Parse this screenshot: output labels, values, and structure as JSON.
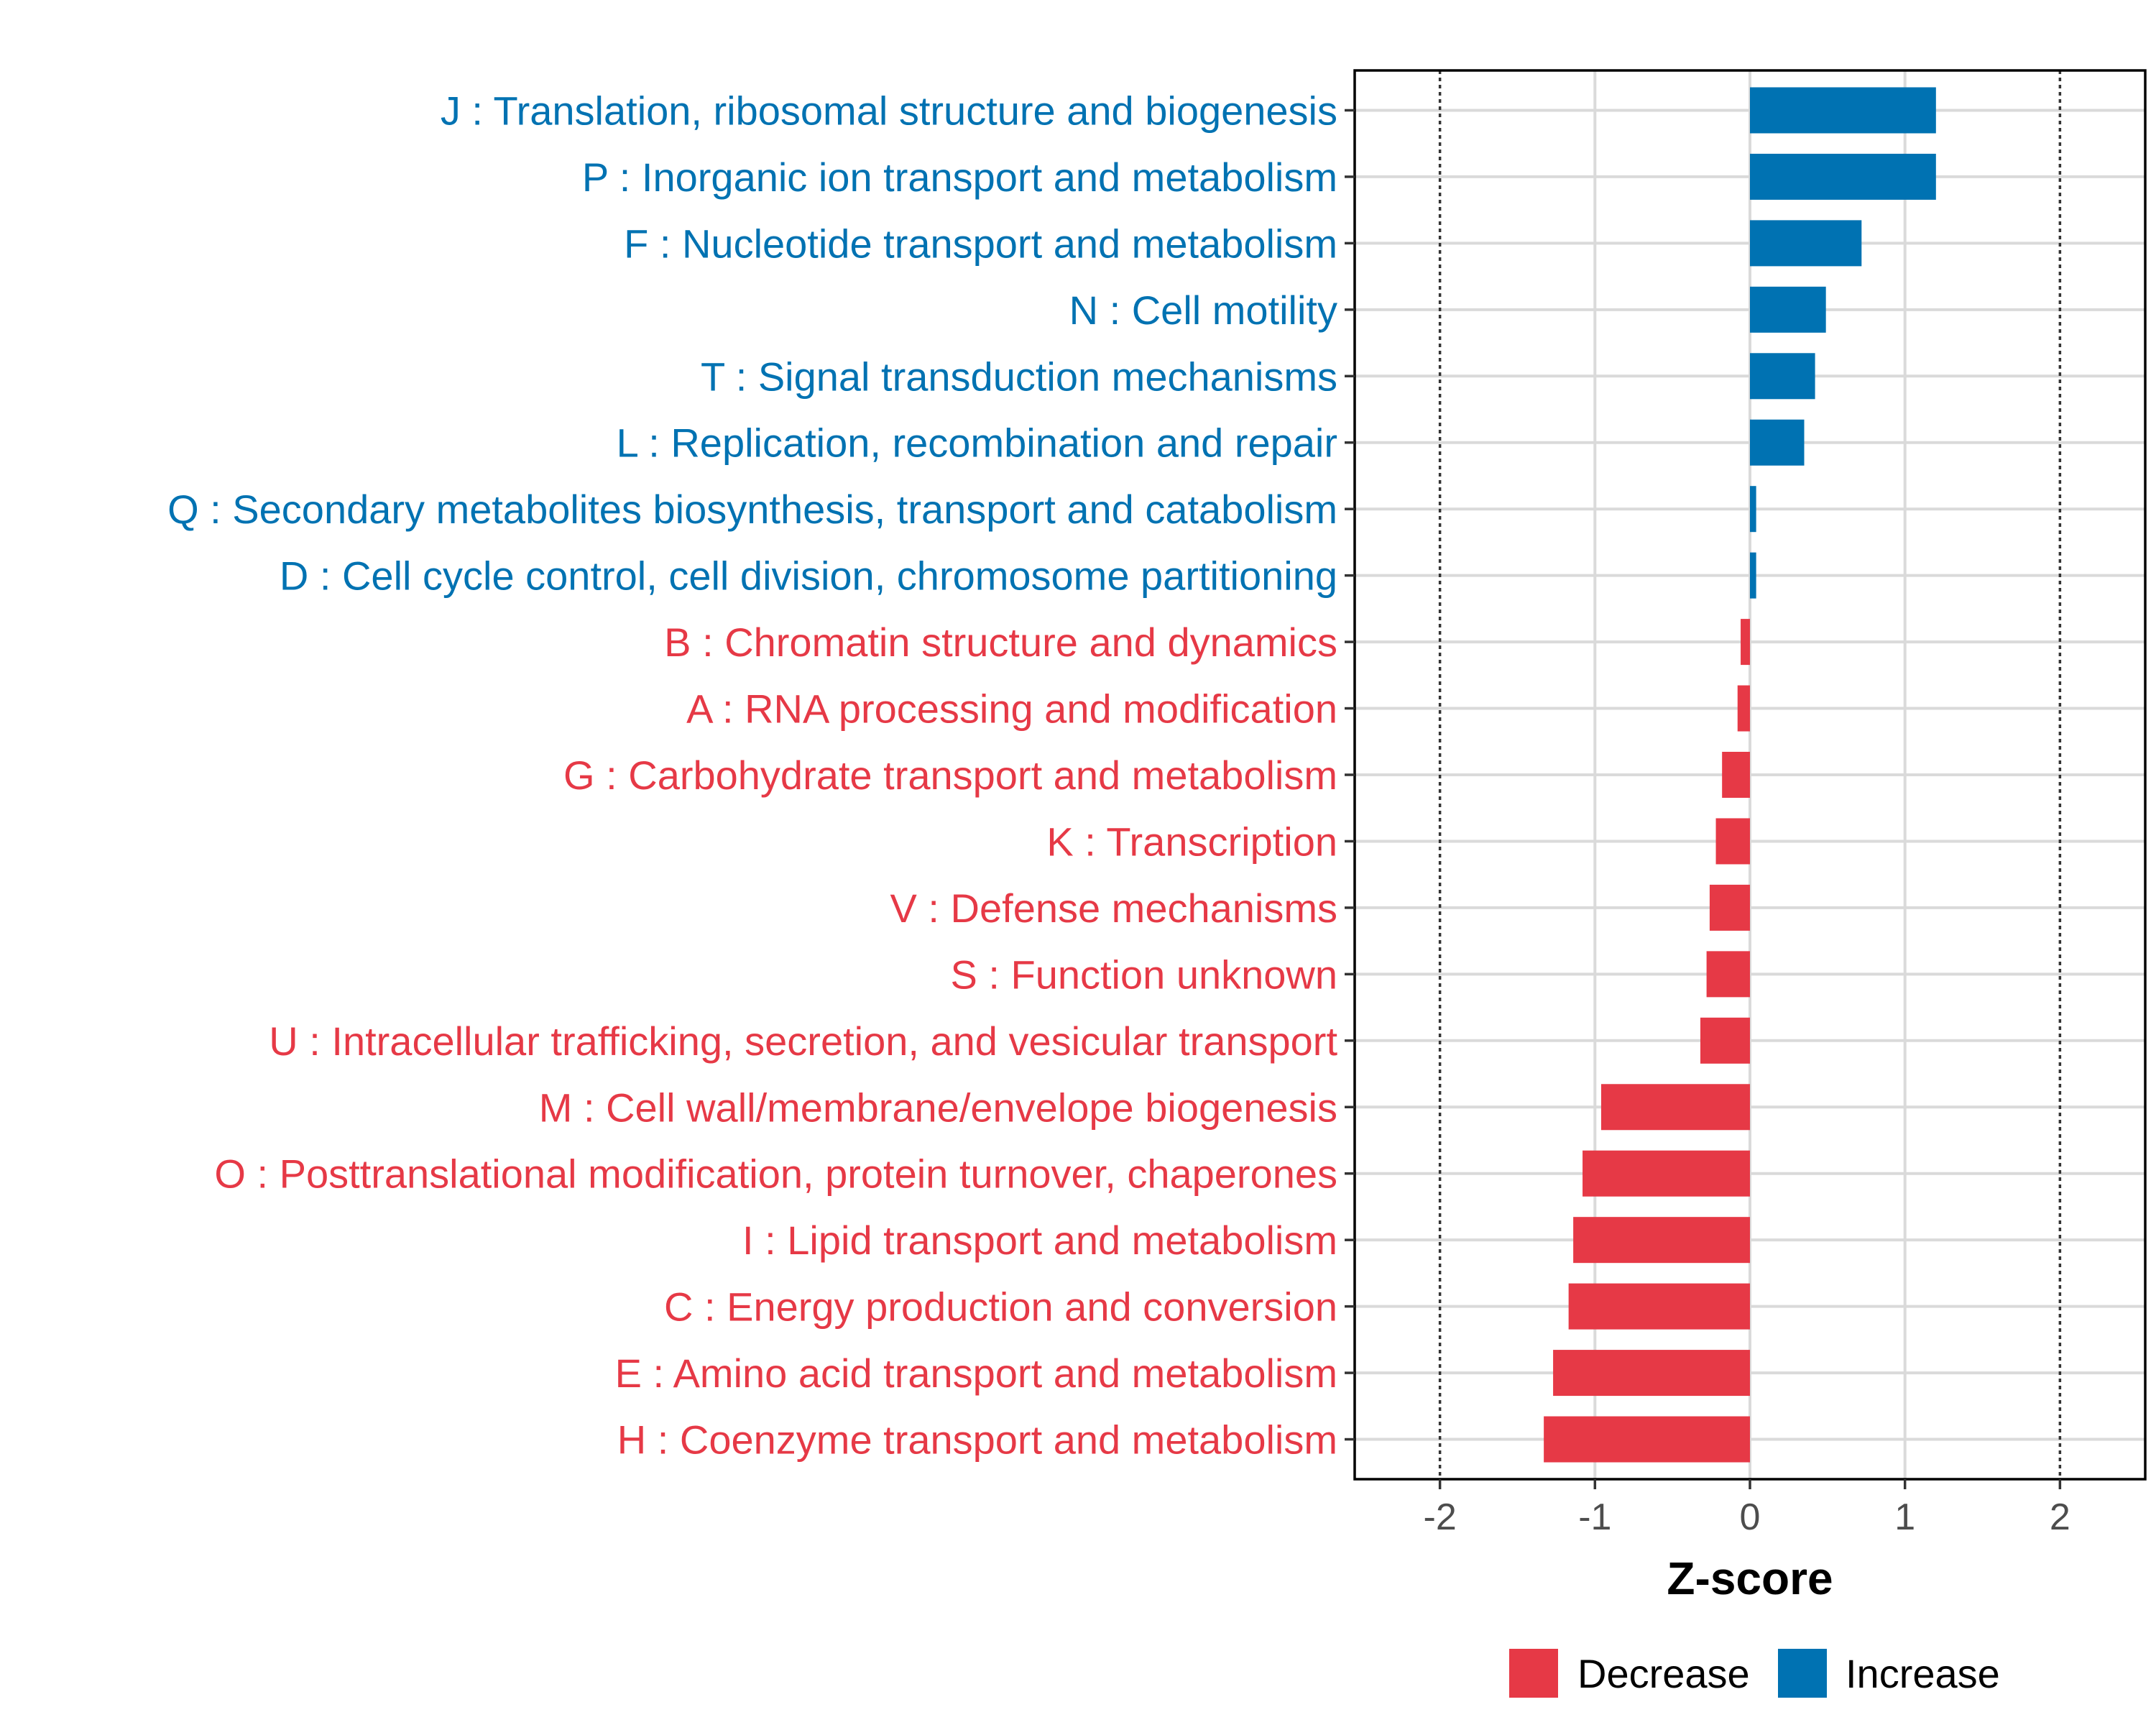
{
  "chart_data": {
    "type": "bar",
    "orientation": "horizontal",
    "title": "",
    "xlabel": "Z-score",
    "ylabel": "",
    "xlim": [
      -2.55,
      2.55
    ],
    "xticks": [
      -2,
      -1,
      0,
      1,
      2
    ],
    "xtick_labels": [
      "-2",
      "-1",
      "0",
      "1",
      "2"
    ],
    "reference_lines": [
      -2,
      2
    ],
    "grid": true,
    "colors": {
      "Increase": "#0072b2",
      "Decrease": "#e63946"
    },
    "categories": [
      "J : Translation, ribosomal structure and biogenesis",
      "P : Inorganic ion transport and metabolism",
      "F : Nucleotide transport and metabolism",
      "N : Cell motility",
      "T : Signal transduction mechanisms",
      "L : Replication, recombination and repair",
      "Q : Secondary metabolites biosynthesis, transport and catabolism",
      "D : Cell cycle control, cell division, chromosome partitioning",
      "B : Chromatin structure and dynamics",
      "A : RNA processing and modification",
      "G : Carbohydrate transport and metabolism",
      "K : Transcription",
      "V : Defense mechanisms",
      "S : Function unknown",
      "U : Intracellular trafficking, secretion, and vesicular transport",
      "M : Cell wall/membrane/envelope biogenesis",
      "O : Posttranslational modification, protein turnover, chaperones",
      "I : Lipid transport and metabolism",
      "C : Energy production and conversion",
      "E : Amino acid transport and metabolism",
      "H : Coenzyme transport and metabolism"
    ],
    "values": [
      1.2,
      1.2,
      0.72,
      0.49,
      0.42,
      0.35,
      0.04,
      0.04,
      -0.06,
      -0.08,
      -0.18,
      -0.22,
      -0.26,
      -0.28,
      -0.32,
      -0.96,
      -1.08,
      -1.14,
      -1.17,
      -1.27,
      -1.33
    ],
    "groups": [
      "Increase",
      "Increase",
      "Increase",
      "Increase",
      "Increase",
      "Increase",
      "Increase",
      "Increase",
      "Decrease",
      "Decrease",
      "Decrease",
      "Decrease",
      "Decrease",
      "Decrease",
      "Decrease",
      "Decrease",
      "Decrease",
      "Decrease",
      "Decrease",
      "Decrease",
      "Decrease"
    ],
    "legend": {
      "position": "bottom",
      "entries": [
        {
          "label": "Decrease",
          "color": "#e63946"
        },
        {
          "label": "Increase",
          "color": "#0072b2"
        }
      ]
    }
  }
}
